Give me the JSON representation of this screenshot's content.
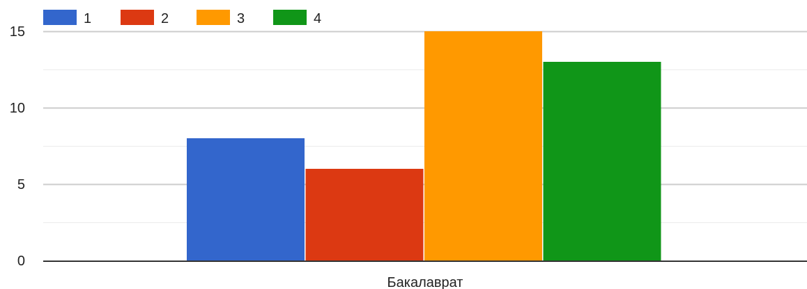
{
  "chart_data": {
    "type": "bar",
    "categories": [
      "Бакалаврат"
    ],
    "series": [
      {
        "name": "1",
        "values": [
          8
        ],
        "color": "#3366cc"
      },
      {
        "name": "2",
        "values": [
          6
        ],
        "color": "#dc3912"
      },
      {
        "name": "3",
        "values": [
          15
        ],
        "color": "#ff9900"
      },
      {
        "name": "4",
        "values": [
          13
        ],
        "color": "#109618"
      }
    ],
    "ylim": [
      0,
      15
    ],
    "yticks": [
      0,
      5,
      10,
      15
    ],
    "minor_gridlines": [
      2.5,
      7.5,
      12.5
    ],
    "grid": true,
    "legend_position": "top-left",
    "title": "",
    "xlabel": "",
    "ylabel": ""
  }
}
